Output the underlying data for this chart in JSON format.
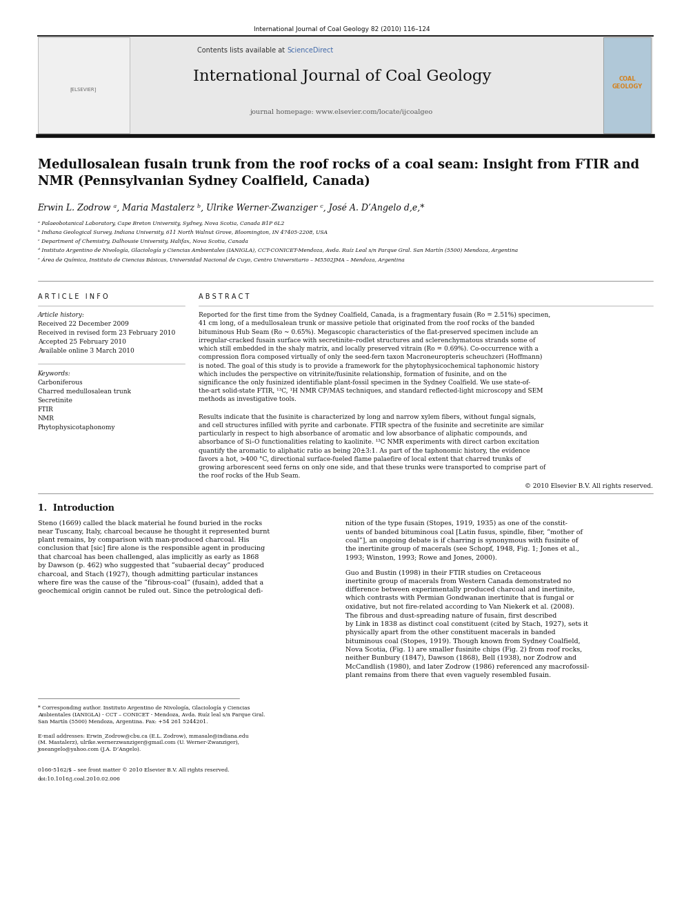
{
  "page_width": 9.92,
  "page_height": 13.23,
  "bg_color": "#ffffff",
  "header_journal": "International Journal of Coal Geology 82 (2010) 116–124",
  "journal_name": "International Journal of Coal Geology",
  "journal_homepage": "journal homepage: www.elsevier.com/locate/ijcoalgeo",
  "contents_lists": "Contents lists available at ",
  "science_direct": "ScienceDirect",
  "title": "Medullosalean fusain trunk from the roof rocks of a coal seam: Insight from FTIR and\nNMR (Pennsylvanian Sydney Coalfield, Canada)",
  "authors": "Erwin L. Zodrow ᵃ, Maria Mastalerz ᵇ, Ulrike Werner-Zwanziger ᶜ, José A. D’Angelo d,e,*",
  "affil_a": "ᵃ Palaeobotanical Laboratory, Cape Breton University, Sydney, Nova Scotia, Canada B1P 6L2",
  "affil_b": "ᵇ Indiana Geological Survey, Indiana University, 611 North Walnut Grove, Bloomington, IN 47405-2208, USA",
  "affil_c": "ᶜ Department of Chemistry, Dalhousie University, Halifax, Nova Scotia, Canada",
  "affil_d": "ᵈ Instituto Argentino de Nivología, Glaciología y Ciencias Ambientales (IANIGLA), CCT-CONICET-Mendoza, Avda. Ruíz Leal s/n Parque Gral. San Martín (5500) Mendoza, Argentina",
  "affil_e": "ᵉ Área de Química, Instituto de Ciencias Básicas, Universidad Nacional de Cuyo, Centro Universitario – M5502JMA – Mendoza, Argentina",
  "article_info_title": "A R T I C L E   I N F O",
  "article_history_title": "Article history:",
  "received1": "Received 22 December 2009",
  "received2": "Received in revised form 23 February 2010",
  "accepted": "Accepted 25 February 2010",
  "available": "Available online 3 March 2010",
  "keywords_title": "Keywords:",
  "keywords": [
    "Carboniferous",
    "Charred medullosalean trunk",
    "Secretinite",
    "FTIR",
    "NMR",
    "Phytophysicotaphonomy"
  ],
  "abstract_title": "A B S T R A C T",
  "abstract_p1": "Reported for the first time from the Sydney Coalfield, Canada, is a fragmentary fusain (Ro = 2.51%) specimen,\n41 cm long, of a medullosalean trunk or massive petiole that originated from the roof rocks of the banded\nbituminous Hub Seam (Ro ~ 0.65%). Megascopic characteristics of the flat-preserved specimen include an\nirregular-cracked fusain surface with secretinite–rodlet structures and sclerenchymatous strands some of\nwhich still embedded in the shaly matrix, and locally preserved vitrain (Ro = 0.69%). Co-occurrence with a\ncompression flora composed virtually of only the seed-fern taxon Macroneuropteris scheuchzeri (Hoffmann)\nis noted. The goal of this study is to provide a framework for the phytophysicochemical taphonomic history\nwhich includes the perspective on vitrinite/fusinite relationship, formation of fusinite, and on the\nsignificance the only fusinized identifiable plant-fossil specimen in the Sydney Coalfield. We use state-of-\nthe-art solid-state FTIR, ¹³C, ¹H NMR CP/MAS techniques, and standard reflected-light microscopy and SEM\nmethods as investigative tools.",
  "abstract_p2": "Results indicate that the fusinite is characterized by long and narrow xylem fibers, without fungal signals,\nand cell structures infilled with pyrite and carbonate. FTIR spectra of the fusinite and secretinite are similar\nparticularly in respect to high absorbance of aromatic and low absorbance of aliphatic compounds, and\nabsorbance of Si–O functionalities relating to kaolinite. ¹³C NMR experiments with direct carbon excitation\nquantify the aromatic to aliphatic ratio as being 20±3:1. As part of the taphonomic history, the evidence\nfavors a hot, >400 °C, directional surface-fueled flame palaefire of local extent that charred trunks of\ngrowing arborescent seed ferns on only one side, and that these trunks were transported to comprise part of\nthe roof rocks of the Hub Seam.",
  "copyright": "© 2010 Elsevier B.V. All rights reserved.",
  "section1_title": "1.  Introduction",
  "intro_p1": "Steno (1669) called the black material he found buried in the rocks\nnear Tuscany, Italy, charcoal because he thought it represented burnt\nplant remains, by comparison with man-produced charcoal. His\nconclusion that [sic] fire alone is the responsible agent in producing\nthat charcoal has been challenged, alas implicitly as early as 1868\nby Dawson (p. 462) who suggested that “subaerial decay” produced\ncharcoal, and Stach (1927), though admitting particular instances\nwhere fire was the cause of the “fibrous-coal” (fusain), added that a\ngeochemical origin cannot be ruled out. Since the petrological defi-",
  "intro_p2_right": "nition of the type fusain (Stopes, 1919, 1935) as one of the constit-\nuents of banded bituminous coal [Latin fusus, spindle, fiber, “mother of\ncoal”], an ongoing debate is if charring is synonymous with fusinite of\nthe inertinite group of macerals (see Schopf, 1948, Fig. 1; Jones et al.,\n1993; Winston, 1993; Rowe and Jones, 2000).",
  "intro_p3_right": "Guo and Bustin (1998) in their FTIR studies on Cretaceous\ninertinite group of macerals from Western Canada demonstrated no\ndifference between experimentally produced charcoal and inertinite,\nwhich contrasts with Permian Gondwanan inertinite that is fungal or\noxidative, but not fire-related according to Van Niekerk et al. (2008).",
  "intro_p4_right": "The fibrous and dust-spreading nature of fusain, first described\nby Link in 1838 as distinct coal constituent (cited by Stach, 1927), sets it\nphysically apart from the other constituent macerals in banded\nbituminous coal (Stopes, 1919). Though known from Sydney Coalfield,\nNova Scotia, (Fig. 1) are smaller fusinite chips (Fig. 2) from roof rocks,\nneither Bunbury (1847), Dawson (1868), Bell (1938), nor Zodrow and\nMcCandlish (1980), and later Zodrow (1986) referenced any macrofossil-\nplant remains from there that even vaguely resembled fusain.",
  "footnote_star": "* Corresponding author. Instituto Argentino de Nivología, Glaciología y Ciencias\nAmbientales (IANIGLA) - CCT – CONICET - Mendoza, Avda. Ruíz leal s/n Parque Gral.\nSan Martín (5500) Mendoza, Argentina. Fax: +54 261 5244201.",
  "footnote_email": "E-mail addresses: Erwin_Zodrow@cbu.ca (E.L. Zodrow), mmasale@indiana.edu\n(M. Mastalerz), ulrike.wernerzwanziger@gmail.com (U. Werner-Zwanziger),\njoseangelo@yahoo.com (J.A. D’Angelo).",
  "issn_line": "0166-5162/$ – see front matter © 2010 Elsevier B.V. All rights reserved.",
  "doi_line": "doi:10.1016/j.coal.2010.02.006",
  "header_bg": "#e8e8e8",
  "blue_color": "#4169aa",
  "orange_color": "#d4821e",
  "dark_bar_color": "#333333",
  "text_color": "#000000",
  "small_text_color": "#222222"
}
